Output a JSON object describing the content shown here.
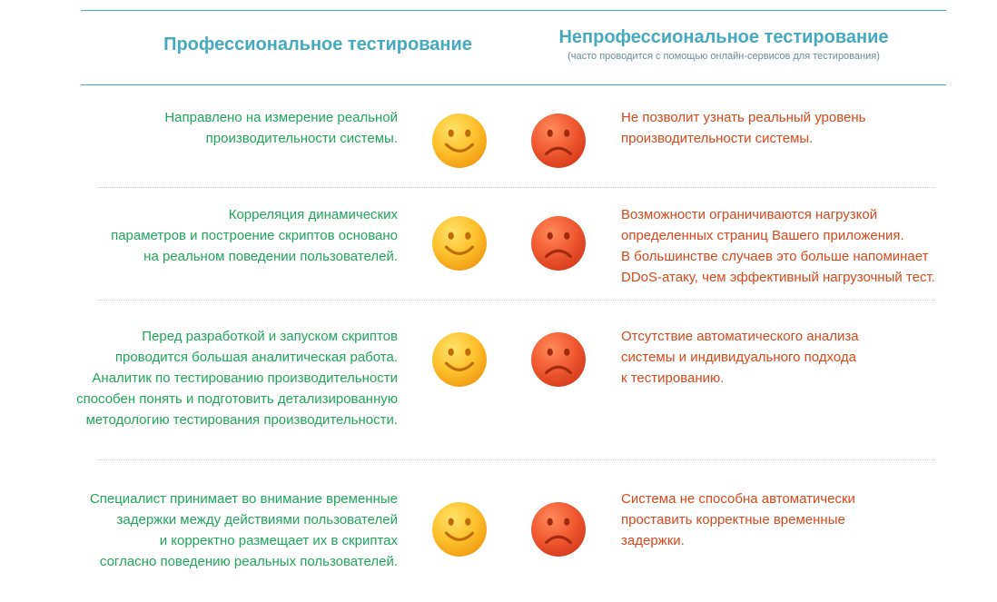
{
  "header": {
    "professional_title": "Профессиональное тестирование",
    "unprofessional_title": "Непрофессиональное тестирование",
    "unprofessional_subtitle": "(часто проводится с помощью онлайн-сервисов для тестирования)"
  },
  "colors": {
    "header": "#45a9c0",
    "pro_text": "#1ea65a",
    "con_text": "#d9481a",
    "happy_face": "#fbb623",
    "sad_face": "#ec5230"
  },
  "icons": {
    "happy": "smiling-face-icon",
    "sad": "frowning-face-icon"
  },
  "rows": [
    {
      "pro": [
        "Направлено на измерение реальной",
        "производительности системы."
      ],
      "con": [
        "Не позволит узнать реальный уровень",
        "производительности системы."
      ]
    },
    {
      "pro": [
        "Корреляция динамических",
        "параметров и построение скриптов основано",
        "на реальном поведении пользователей."
      ],
      "con": [
        "Возможности ограничиваются нагрузкой",
        "определенных страниц Вашего приложения.",
        "В большинстве случаев это больше напоминает",
        "DDoS-атаку, чем эффективный нагрузочный тест."
      ]
    },
    {
      "pro": [
        "Перед разработкой и запуском скриптов",
        "проводится большая аналитическая работа.",
        "Аналитик по тестированию производительности",
        "способен понять и подготовить детализированную",
        "методологию тестирования производительности."
      ],
      "con": [
        "Отсутствие автоматического анализа",
        "системы и индивидуального подхода",
        "к тестированию."
      ]
    },
    {
      "pro": [
        "Специалист принимает во внимание временные",
        "задержки между действиями пользователей",
        "и корректно размещает их в скриптах",
        "согласно поведению реальных пользователей."
      ],
      "con": [
        "Система не способна автоматически",
        "проставить корректные временные",
        "задержки."
      ]
    }
  ]
}
